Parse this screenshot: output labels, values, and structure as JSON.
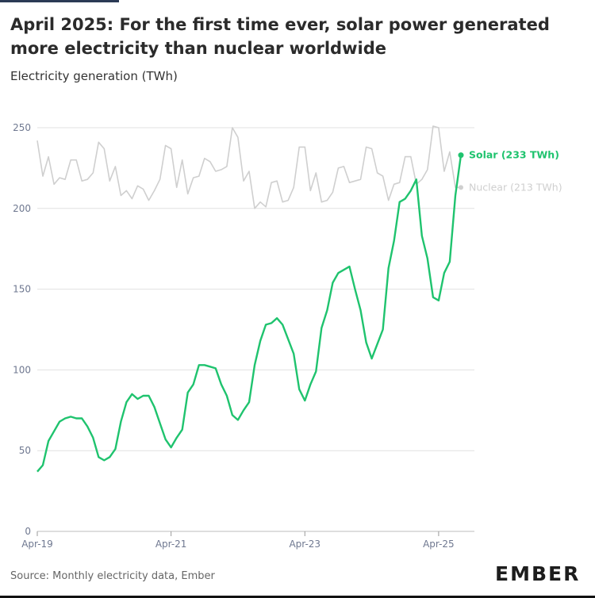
{
  "header": {
    "title": "April 2025: For the first time ever, solar power generated more electricity than nuclear worldwide",
    "subtitle": "Electricity generation (TWh)"
  },
  "footer": {
    "source": "Source: Monthly electricity data, Ember",
    "logo": "EMBER"
  },
  "colors": {
    "solar": "#1fc36e",
    "nuclear": "#cfcfcf",
    "grid": "#e1e1e1",
    "axis_text": "#6f7890"
  },
  "chart_data": {
    "type": "line",
    "title": "April 2025: For the first time ever, solar power generated more electricity than nuclear worldwide",
    "ylabel": "Electricity generation (TWh)",
    "xlabel": "",
    "x_start": "Apr-19",
    "x_ticks": [
      "Apr-19",
      "Apr-21",
      "Apr-23",
      "Apr-25"
    ],
    "y_ticks": [
      0,
      50,
      100,
      150,
      200,
      250
    ],
    "ylim": [
      0,
      250
    ],
    "grid": true,
    "series": [
      {
        "name": "Solar",
        "end_label": "Solar (233 TWh)",
        "color": "#1fc36e",
        "values": [
          37,
          41,
          56,
          62,
          68,
          70,
          71,
          70,
          70,
          65,
          58,
          46,
          44,
          46,
          51,
          68,
          80,
          85,
          82,
          84,
          84,
          77,
          67,
          57,
          52,
          58,
          63,
          86,
          91,
          103,
          103,
          102,
          101,
          91,
          84,
          72,
          69,
          75,
          80,
          103,
          118,
          128,
          129,
          132,
          128,
          119,
          110,
          88,
          81,
          91,
          99,
          126,
          137,
          154,
          160,
          162,
          164,
          150,
          137,
          117,
          107,
          116,
          125,
          163,
          180,
          204,
          206,
          211,
          218,
          183,
          169,
          145,
          143,
          160,
          167,
          208,
          233
        ]
      },
      {
        "name": "Nuclear",
        "end_label": "Nuclear (213 TWh)",
        "color": "#cfcfcf",
        "values": [
          242,
          220,
          232,
          215,
          219,
          218,
          230,
          230,
          217,
          218,
          222,
          241,
          237,
          217,
          226,
          208,
          211,
          206,
          214,
          212,
          205,
          211,
          218,
          239,
          237,
          213,
          230,
          209,
          219,
          220,
          231,
          229,
          223,
          224,
          226,
          250,
          244,
          217,
          223,
          200,
          204,
          201,
          216,
          217,
          204,
          205,
          213,
          238,
          238,
          211,
          222,
          204,
          205,
          210,
          225,
          226,
          216,
          217,
          218,
          238,
          237,
          222,
          220,
          205,
          215,
          216,
          232,
          232,
          215,
          218,
          224,
          251,
          250,
          223,
          235,
          213,
          213
        ]
      }
    ]
  }
}
